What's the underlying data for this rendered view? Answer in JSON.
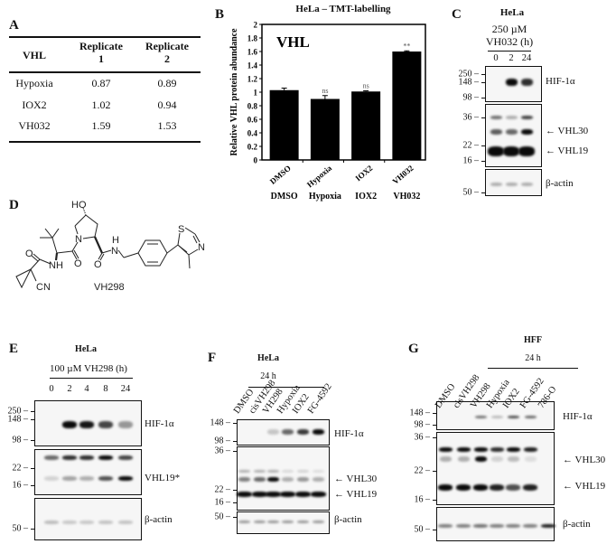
{
  "panel_a": {
    "letter": "A",
    "headers": [
      "VHL",
      "Replicate\n1",
      "Replicate\n2"
    ],
    "header_lines": [
      [
        "VHL"
      ],
      [
        "Replicate",
        "1"
      ],
      [
        "Replicate",
        "2"
      ]
    ],
    "rows": [
      [
        "Hypoxia",
        "0.87",
        "0.89"
      ],
      [
        "IOX2",
        "1.02",
        "0.94"
      ],
      [
        "VH032",
        "1.59",
        "1.53"
      ]
    ]
  },
  "panel_b": {
    "letter": "B",
    "bottom_labels": [
      "DMSO",
      "Hypoxia",
      "IOX2",
      "VH032"
    ]
  },
  "chart_data": {
    "type": "bar",
    "title": "HeLa – TMT-labelling",
    "inset_label": "VHL",
    "categories": [
      "DMSO",
      "Hypoxia",
      "IOX2",
      "VH032"
    ],
    "values": [
      1.03,
      0.9,
      1.01,
      1.6
    ],
    "errors": [
      0.03,
      0.05,
      0.01,
      0.01
    ],
    "annotations": [
      "",
      "ns",
      "ns",
      "**"
    ],
    "xlabel": "",
    "ylabel": "Relative VHL protein abundance",
    "ylim": [
      0,
      2
    ],
    "yticks": [
      "0",
      "0.2",
      "0.4",
      "0.6",
      "0.8",
      "1",
      "1.2",
      "1.4",
      "1.6",
      "1.8",
      "2"
    ],
    "bar_color": "#000000",
    "grid": false
  },
  "panel_c": {
    "letter": "C",
    "cell_line": "HeLa",
    "treatment_line1": "250 µM",
    "treatment_line2": "VH032 (h)",
    "lanes": [
      "0",
      "2",
      "24"
    ],
    "markers": [
      "250",
      "148",
      "98",
      "36",
      "22",
      "16",
      "50"
    ],
    "targets": [
      "HIF-1α",
      "← VHL30",
      "← VHL19",
      "β-actin"
    ],
    "band_intensity": {
      "hif": [
        0,
        1,
        0.85
      ],
      "upper": [
        0.55,
        0.3,
        0.75
      ],
      "vhl30": [
        0.65,
        0.6,
        1
      ],
      "vhl19": [
        1,
        1,
        1
      ],
      "actin": [
        0.3,
        0.3,
        0.3
      ]
    }
  },
  "panel_d": {
    "letter": "D",
    "compound": "VH298",
    "atoms": [
      "HO",
      "N",
      "O",
      "NH",
      "O",
      "N",
      "H",
      "O",
      "CN",
      "S",
      "N"
    ]
  },
  "panel_e": {
    "letter": "E",
    "cell_line": "HeLa",
    "treatment": "100 µM VH298 (h)",
    "lanes": [
      "0",
      "2",
      "4",
      "8",
      "24"
    ],
    "markers": [
      "250",
      "148",
      "98",
      "22",
      "16",
      "50"
    ],
    "targets": [
      "HIF-1α",
      "VHL19*",
      "β-actin"
    ],
    "band_intensity": {
      "hif": [
        0,
        1,
        0.95,
        0.75,
        0.4
      ],
      "upper": [
        0.6,
        0.85,
        0.85,
        1,
        0.75
      ],
      "vhl19": [
        0.15,
        0.35,
        0.3,
        0.7,
        1
      ],
      "actin": [
        0.25,
        0.2,
        0.2,
        0.22,
        0.22
      ]
    }
  },
  "panel_f": {
    "letter": "F",
    "cell_line": "HeLa",
    "time": "24 h",
    "lanes": [
      "DMSO",
      "cisVH298",
      "VH298",
      "Hypoxia",
      "IOX2",
      "FG-4592"
    ],
    "markers": [
      "148",
      "98",
      "36",
      "22",
      "16",
      "50"
    ],
    "targets": [
      "HIF-1α",
      "← VHL30",
      "← VHL19",
      "β-actin"
    ],
    "band_intensity": {
      "hif": [
        0,
        0,
        0.2,
        0.6,
        0.8,
        1
      ],
      "upper": [
        0.3,
        0.3,
        0.3,
        0.12,
        0.15,
        0.1
      ],
      "vhl30": [
        0.5,
        0.6,
        1,
        0.3,
        0.4,
        0.3
      ],
      "vhl19": [
        1,
        1,
        1,
        1,
        1,
        1
      ],
      "actin": [
        0.4,
        0.4,
        0.4,
        0.4,
        0.4,
        0.4
      ]
    }
  },
  "panel_g": {
    "letter": "G",
    "cell_line": "HFF",
    "time": "24 h",
    "lanes": [
      "DMSO",
      "cisVH298",
      "VH298",
      "Hypoxia",
      "IOX2",
      "FG-4592",
      "786-O"
    ],
    "markers": [
      "148",
      "98",
      "36",
      "22",
      "16",
      "50"
    ],
    "targets": [
      "HIF-1α",
      "← VHL30",
      "← VHL19",
      "β-actin"
    ],
    "band_intensity": {
      "hif": [
        0,
        0,
        0.55,
        0.25,
        0.7,
        0.6,
        0
      ],
      "upper": [
        1,
        1,
        1,
        0.85,
        1,
        0.9,
        0
      ],
      "vhl30": [
        0.3,
        0.3,
        1,
        0.15,
        0.25,
        0.1,
        0
      ],
      "vhl19": [
        1,
        1,
        1,
        0.9,
        0.7,
        0.9,
        0
      ],
      "actin": [
        0.5,
        0.5,
        0.55,
        0.5,
        0.5,
        0.5,
        0.9
      ]
    }
  }
}
